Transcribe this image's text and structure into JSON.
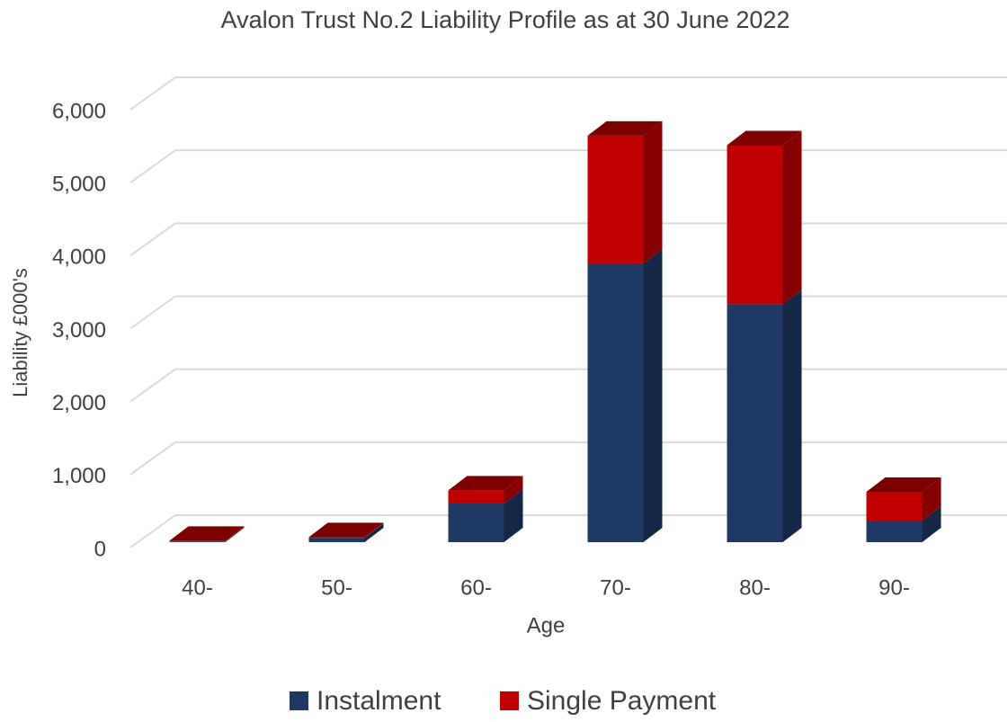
{
  "chart_data": {
    "type": "bar",
    "stacked": true,
    "title": "Avalon Trust No.2 Liability Profile as at 30 June 2022",
    "x_label": "Age",
    "y_label": "Liability £000's",
    "categories": [
      "40-",
      "50-",
      "60-",
      "70-",
      "80-",
      "90-"
    ],
    "series": [
      {
        "name": "Instalment",
        "color": "#1f3864",
        "values": [
          10,
          60,
          530,
          3820,
          3260,
          295
        ]
      },
      {
        "name": "Single Payment",
        "color": "#c00000",
        "values": [
          10,
          10,
          180,
          1750,
          2180,
          395
        ]
      }
    ],
    "ylim": [
      0,
      6000
    ],
    "yticks": [
      0,
      {
        "value": 1000,
        "label": "1,000"
      },
      {
        "value": 2000,
        "label": "2,000"
      },
      {
        "value": 3000,
        "label": "3,000"
      },
      {
        "value": 4000,
        "label": "4,000"
      },
      {
        "value": 5000,
        "label": "5,000"
      },
      {
        "value": 6000,
        "label": "6,000"
      }
    ],
    "grid": true,
    "legend": "bottom"
  }
}
